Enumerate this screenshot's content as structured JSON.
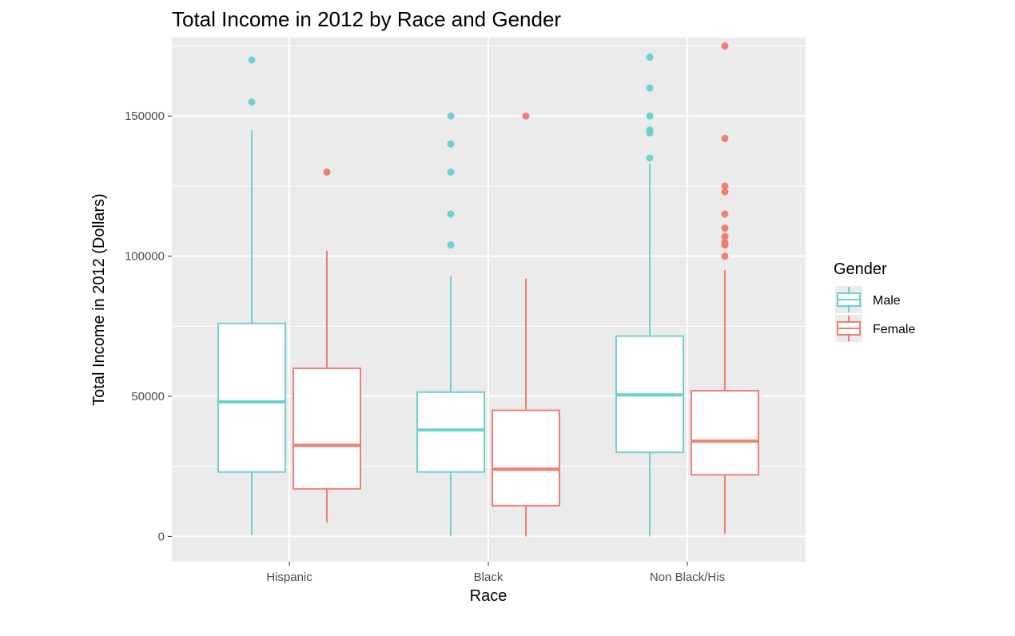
{
  "chart_data": {
    "type": "boxplot",
    "title": "Total Income in 2012 by Race and Gender",
    "xlabel": "Race",
    "ylabel": "Total Income in 2012 (Dollars)",
    "categories": [
      "Hispanic",
      "Black",
      "Non Black/His"
    ],
    "ylim": [
      -9000,
      178000
    ],
    "yticks": [
      0,
      50000,
      100000,
      150000
    ],
    "ytick_labels": [
      "0",
      "50000",
      "100000",
      "150000"
    ],
    "grid": true,
    "legend": {
      "title": "Gender",
      "position": "right"
    },
    "series": [
      {
        "name": "Male",
        "color": "#6FD1CE",
        "boxes": [
          {
            "category": "Hispanic",
            "whisker_low": 500,
            "q1": 23000,
            "median": 48000,
            "q3": 76000,
            "whisker_high": 145000,
            "outliers": [
              155000,
              170000
            ]
          },
          {
            "category": "Black",
            "whisker_low": 0,
            "q1": 23000,
            "median": 38000,
            "q3": 51500,
            "whisker_high": 93000,
            "outliers": [
              104000,
              115000,
              130000,
              140000,
              150000
            ]
          },
          {
            "category": "Non Black/His",
            "whisker_low": 0,
            "q1": 30000,
            "median": 50500,
            "q3": 71500,
            "whisker_high": 133000,
            "outliers": [
              135000,
              144000,
              145000,
              150000,
              160000,
              171000
            ]
          }
        ]
      },
      {
        "name": "Female",
        "color": "#EE8073",
        "boxes": [
          {
            "category": "Hispanic",
            "whisker_low": 5000,
            "q1": 17000,
            "median": 32500,
            "q3": 60000,
            "whisker_high": 102000,
            "outliers": [
              130000
            ]
          },
          {
            "category": "Black",
            "whisker_low": 0,
            "q1": 11000,
            "median": 24000,
            "q3": 45000,
            "whisker_high": 92000,
            "outliers": [
              150000
            ]
          },
          {
            "category": "Non Black/His",
            "whisker_low": 1000,
            "q1": 22000,
            "median": 34000,
            "q3": 52000,
            "whisker_high": 95000,
            "outliers": [
              100000,
              104000,
              105000,
              107000,
              110000,
              115000,
              123000,
              125000,
              142000,
              175000
            ]
          }
        ]
      }
    ]
  }
}
